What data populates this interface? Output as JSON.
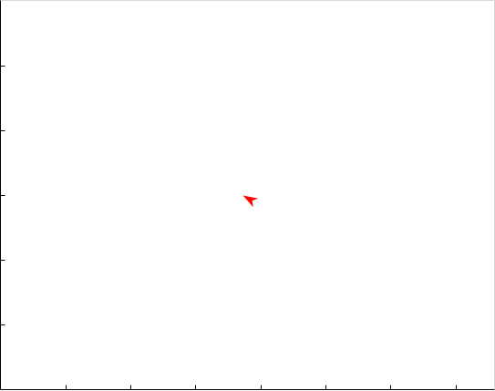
{
  "chart_data": {
    "type": "scatter",
    "xlabel": "",
    "ylabel": "",
    "xlim": [
      0,
      7.6
    ],
    "ylim": [
      0,
      6
    ],
    "x_ticks": [
      1,
      2,
      3,
      4,
      5,
      6,
      7
    ],
    "y_ticks": [
      1,
      2,
      3,
      4,
      5
    ],
    "grid": false,
    "marker": {
      "shape": "arrowhead",
      "heading_deg": 30,
      "x": 3.84,
      "y": 2.93,
      "color": "#ff0000"
    },
    "colors": {
      "axis": "#000000",
      "frame": "#d9d9d9"
    }
  }
}
